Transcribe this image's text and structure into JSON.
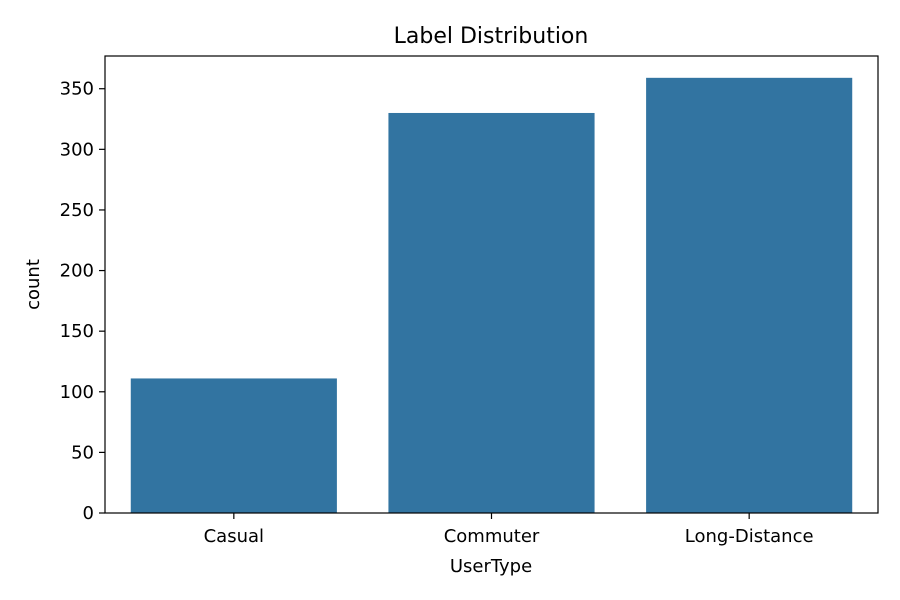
{
  "chart_data": {
    "type": "bar",
    "title": "Label Distribution",
    "xlabel": "UserType",
    "ylabel": "count",
    "categories": [
      "Casual",
      "Commuter",
      "Long-Distance"
    ],
    "values": [
      111,
      330,
      359
    ],
    "ylim": [
      0,
      377
    ],
    "yticks": [
      0,
      50,
      100,
      150,
      200,
      250,
      300,
      350
    ],
    "grid": false,
    "legend": "none",
    "bar_color": "#3274a1"
  }
}
